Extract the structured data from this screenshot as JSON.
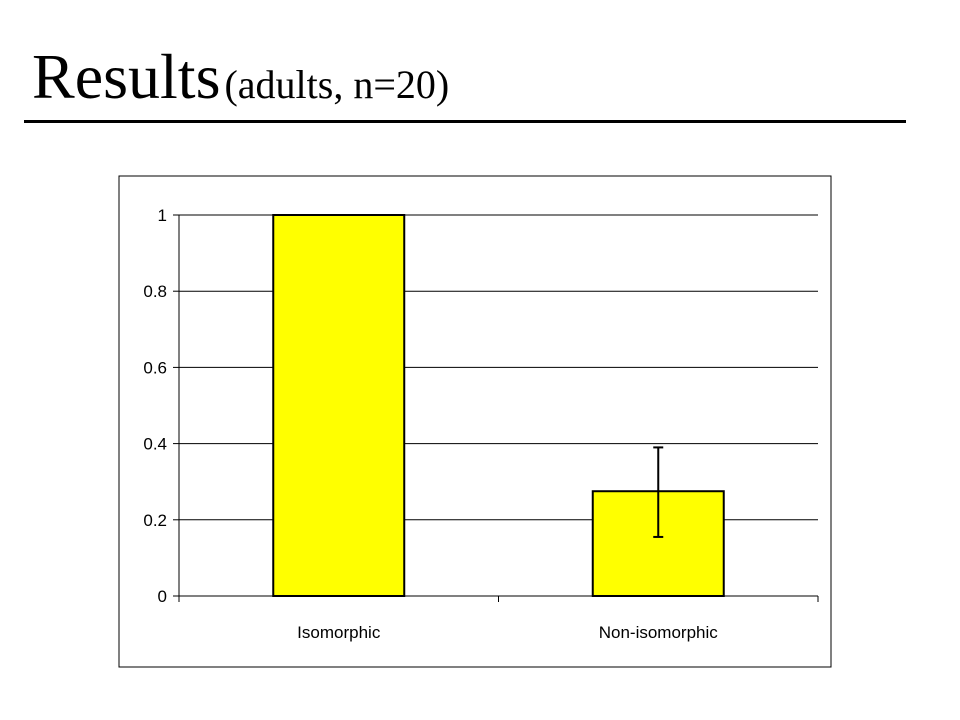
{
  "slide": {
    "title_main": "Results",
    "title_sub": "(adults, n=20)"
  },
  "chart_data": {
    "type": "bar",
    "categories": [
      "Isomorphic",
      "Non-isomorphic"
    ],
    "values": [
      1.0,
      0.275
    ],
    "error_low": [
      1.0,
      0.155
    ],
    "error_high": [
      1.0,
      0.39
    ],
    "ylim": [
      0,
      1
    ],
    "yticks": [
      0,
      0.2,
      0.4,
      0.6,
      0.8,
      1
    ],
    "ytick_labels": [
      "0",
      "0.2",
      "0.4",
      "0.6",
      "0.8",
      "1"
    ],
    "title": "",
    "xlabel": "",
    "ylabel": "",
    "grid": true,
    "legend": "none",
    "bar_color": "#FFFF00"
  }
}
